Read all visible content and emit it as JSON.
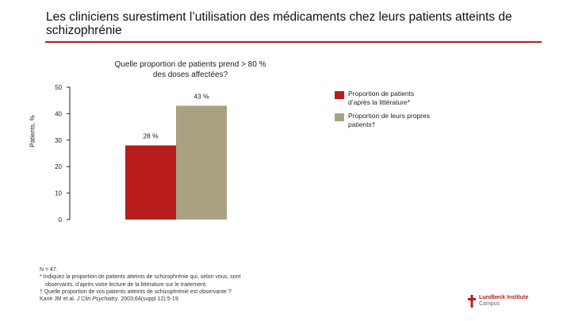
{
  "slide": {
    "title": "Les cliniciens surestiment l’utilisation des médicaments chez leurs patients atteints de schizophrénie",
    "accent_color": "#b81c1c"
  },
  "chart_data": {
    "type": "bar",
    "title_lines": [
      "Quelle proportion de patients prend > 80 %",
      "des doses affectées?"
    ],
    "ylabel": "Patients, %",
    "ylim": [
      0,
      50
    ],
    "yticks": [
      0,
      10,
      20,
      30,
      40,
      50
    ],
    "grid": false,
    "legend_position": "right",
    "series": [
      {
        "name": "Proportion de patients d’après la littérature*",
        "value": 28,
        "label": "28 %",
        "color": "#b81c1c"
      },
      {
        "name": "Proportion de leurs propres patients†",
        "value": 43,
        "label": "43 %",
        "color": "#a8a283"
      }
    ]
  },
  "footnotes": {
    "n": "N = 47.",
    "star_line1": "* Indiquez la proportion de patients atteints de schizophrénie qui, selon vous, sont",
    "star_line2": "observants, d’après votre lecture de la littérature sur le traitement.",
    "dagger": "† Quelle proportion de vos patients atteints de schizophrénie est observante ?",
    "citation_prefix": "Kane JM et al. ",
    "citation_journal": "J Clin Psychiatry",
    "citation_suffix": ". 2003;64(suppl 12):5-19."
  },
  "brand": {
    "line1": "Lundbeck Institute",
    "line2": "Campus"
  }
}
